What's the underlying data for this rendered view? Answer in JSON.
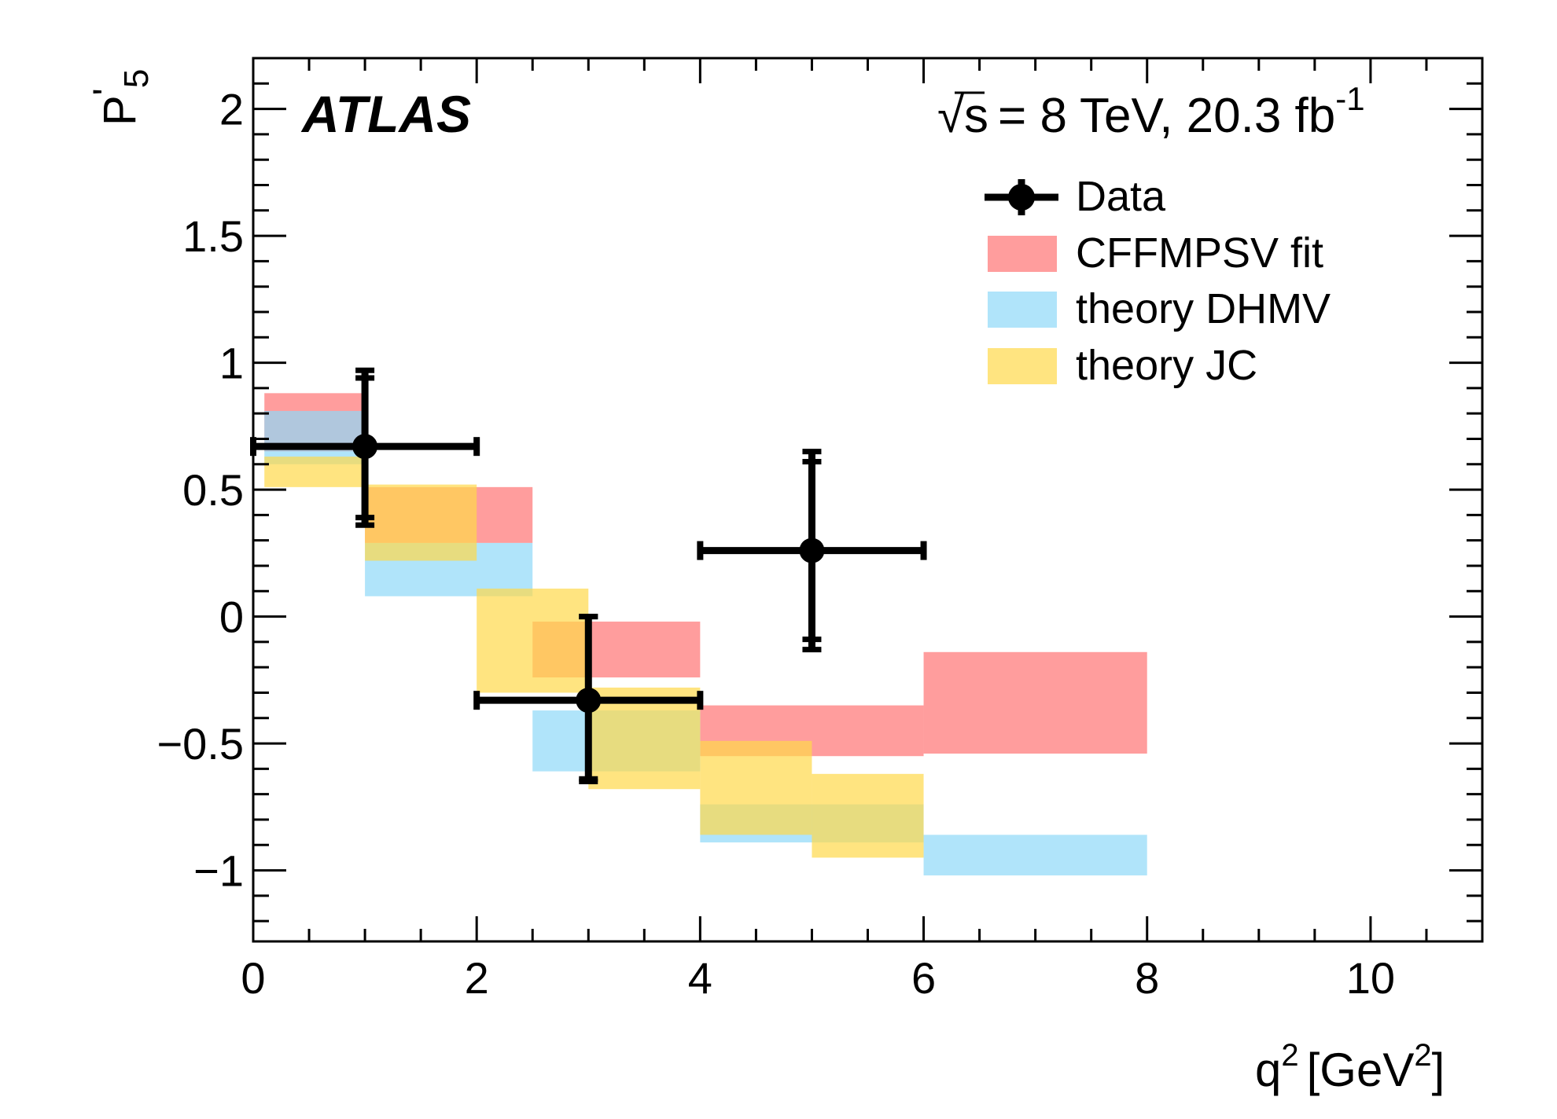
{
  "chart_data": {
    "type": "bar",
    "title": "",
    "experiment_label": "ATLAS",
    "energy_label": {
      "sqrt_symbol": "√",
      "s": "s",
      "text": "= 8 TeV, 20.3 fb",
      "exponent": "-1"
    },
    "ylabel": {
      "base": "P",
      "prime": "'",
      "subscript": "5"
    },
    "xlabel": {
      "q": "q",
      "q_sup": "2",
      "unit": "[GeV",
      "unit_sup": "2",
      "close": "]"
    },
    "xlim": [
      0,
      11
    ],
    "ylim": [
      -1.28,
      2.2
    ],
    "x_ticks": [
      {
        "value": 0,
        "label": "0"
      },
      {
        "value": 2,
        "label": "2"
      },
      {
        "value": 4,
        "label": "4"
      },
      {
        "value": 6,
        "label": "6"
      },
      {
        "value": 8,
        "label": "8"
      },
      {
        "value": 10,
        "label": "10"
      }
    ],
    "y_ticks": [
      {
        "value": -1,
        "label": "−1"
      },
      {
        "value": -0.5,
        "label": "−0.5"
      },
      {
        "value": 0,
        "label": "0"
      },
      {
        "value": 0.5,
        "label": "0.5"
      },
      {
        "value": 1,
        "label": "1"
      },
      {
        "value": 1.5,
        "label": "1.5"
      },
      {
        "value": 2,
        "label": "2"
      }
    ],
    "legend_position": "top-right",
    "legend": [
      {
        "key": "data",
        "label": "Data"
      },
      {
        "key": "cffmpsv",
        "label": "CFFMPSV fit"
      },
      {
        "key": "dhmv",
        "label": "theory DHMV"
      },
      {
        "key": "jc",
        "label": "theory JC"
      }
    ],
    "colors": {
      "cffmpsv": "#ff5c5c",
      "dhmv": "#8fd8f8",
      "jc": "#ffd94a",
      "data": "#000000"
    },
    "bands": [
      {
        "name": "CFFMPSV fit",
        "key": "cffmpsv",
        "boxes": [
          {
            "x1": 0.1,
            "x2": 0.98,
            "y1": 0.65,
            "y2": 0.88
          },
          {
            "x1": 1,
            "x2": 2.5,
            "y1": 0.29,
            "y2": 0.51
          },
          {
            "x1": 2.5,
            "x2": 4,
            "y1": -0.24,
            "y2": -0.02
          },
          {
            "x1": 4,
            "x2": 6,
            "y1": -0.55,
            "y2": -0.35
          },
          {
            "x1": 6,
            "x2": 8,
            "y1": -0.54,
            "y2": -0.14
          }
        ]
      },
      {
        "name": "theory DHMV",
        "key": "dhmv",
        "boxes": [
          {
            "x1": 0.1,
            "x2": 0.98,
            "y1": 0.6,
            "y2": 0.81
          },
          {
            "x1": 1,
            "x2": 2.5,
            "y1": 0.08,
            "y2": 0.29
          },
          {
            "x1": 2.5,
            "x2": 4,
            "y1": -0.61,
            "y2": -0.37
          },
          {
            "x1": 4,
            "x2": 6,
            "y1": -0.89,
            "y2": -0.74
          },
          {
            "x1": 6,
            "x2": 8,
            "y1": -1.02,
            "y2": -0.86
          }
        ]
      },
      {
        "name": "theory JC",
        "key": "jc",
        "boxes": [
          {
            "x1": 0.1,
            "x2": 0.98,
            "y1": 0.51,
            "y2": 0.63
          },
          {
            "x1": 1,
            "x2": 2,
            "y1": 0.22,
            "y2": 0.52
          },
          {
            "x1": 2,
            "x2": 3,
            "y1": -0.3,
            "y2": 0.11
          },
          {
            "x1": 3,
            "x2": 4,
            "y1": -0.68,
            "y2": -0.28
          },
          {
            "x1": 4,
            "x2": 5,
            "y1": -0.86,
            "y2": -0.49
          },
          {
            "x1": 5,
            "x2": 6,
            "y1": -0.95,
            "y2": -0.62
          }
        ]
      }
    ],
    "data_points": [
      {
        "x": 1,
        "y": 0.67,
        "xerr_low": 1,
        "xerr_high": 1,
        "y_low_stat": 0.39,
        "y_high_stat": 0.94,
        "y_low_tot": 0.36,
        "y_high_tot": 0.97
      },
      {
        "x": 3,
        "y": -0.33,
        "xerr_low": 1,
        "xerr_high": 1,
        "y_low_stat": -0.64,
        "y_high_stat": 0.0,
        "y_low_tot": -0.65,
        "y_high_tot": 0.0
      },
      {
        "x": 5,
        "y": 0.26,
        "xerr_low": 1,
        "xerr_high": 1,
        "y_low_stat": -0.09,
        "y_high_stat": 0.61,
        "y_low_tot": -0.13,
        "y_high_tot": 0.65
      }
    ]
  }
}
